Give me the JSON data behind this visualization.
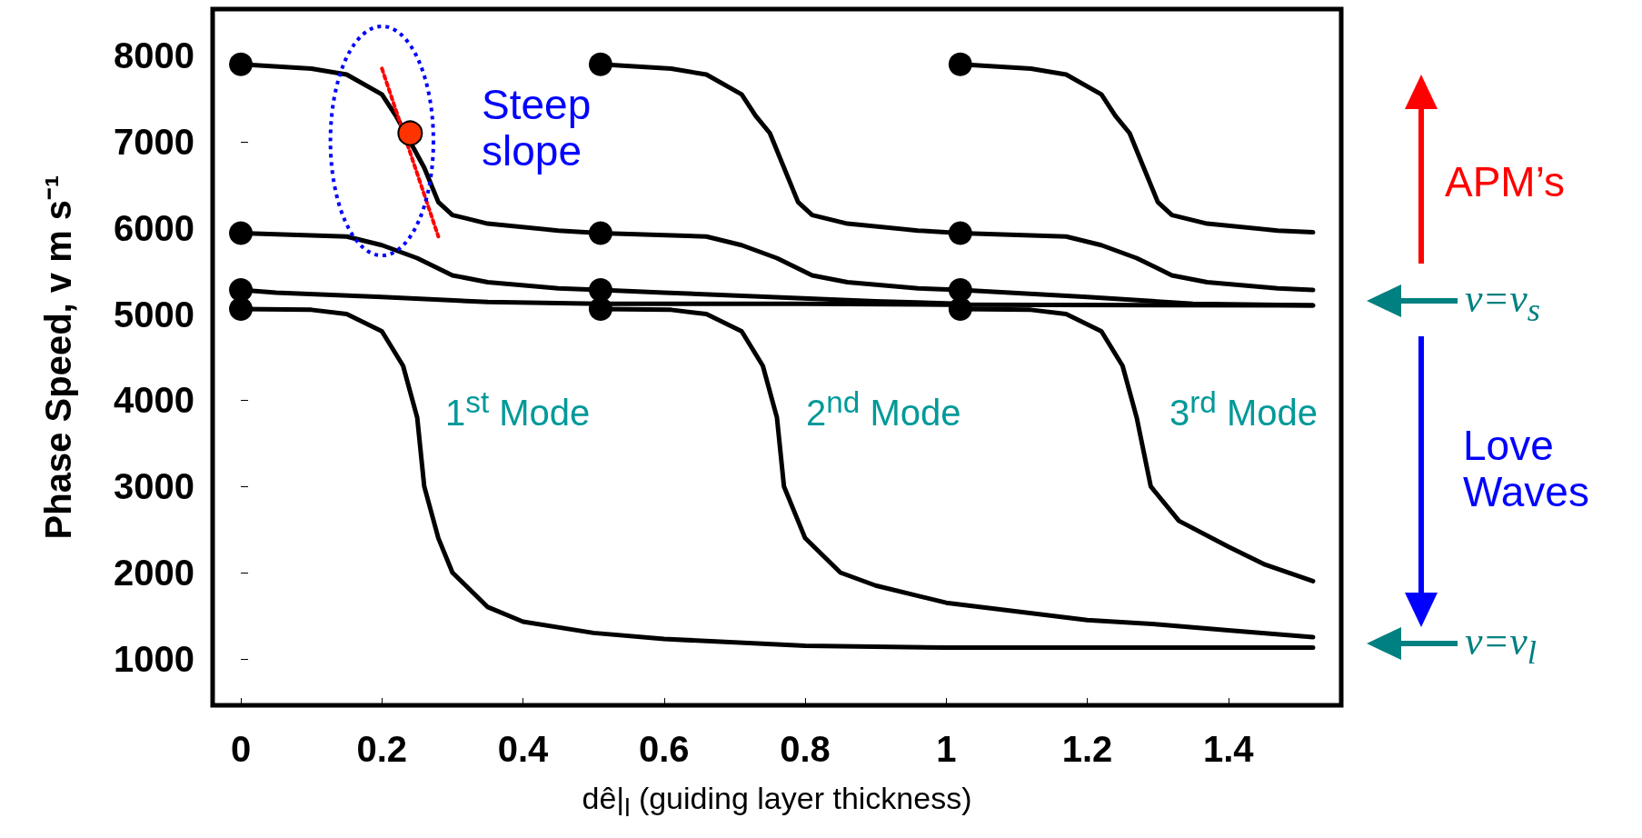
{
  "chart_data": {
    "type": "line",
    "ylabel": "Phase Speed, v m s⁻¹",
    "xlabel": "dê|$_{l}$  (guiding layer thickness)",
    "xlim": [
      -0.04,
      1.56
    ],
    "ylim": [
      460,
      8540
    ],
    "xticks": [
      0,
      0.2,
      0.4,
      0.6,
      0.8,
      1,
      1.2,
      1.4
    ],
    "yticks": [
      1000,
      2000,
      3000,
      4000,
      5000,
      6000,
      7000,
      8000
    ],
    "grid": false,
    "marker": "none",
    "annotations": [
      "Steep slope",
      "1$^{st}$ Mode",
      "2$^{nd}$ Mode",
      "3$^{rd}$ Mode",
      "APM’s",
      "Love Waves",
      "v=v$_{s}$",
      "v=v$_{l}$"
    ],
    "series": [
      {
        "color": "#000000",
        "x": [
          0,
          0.1,
          0.15,
          0.2,
          0.22,
          0.26,
          0.28,
          0.3,
          0.35,
          0.45,
          0.51
        ],
        "values": [
          7900,
          7850,
          7780,
          7550,
          7300,
          6700,
          6300,
          6150,
          6050,
          5970,
          5940
        ]
      },
      {
        "color": "#000000",
        "x": [
          0.51,
          0.61,
          0.66,
          0.71,
          0.73,
          0.75,
          0.77,
          0.79,
          0.81,
          0.86,
          0.96,
          1.02
        ],
        "values": [
          7900,
          7850,
          7780,
          7550,
          7300,
          7100,
          6700,
          6300,
          6150,
          6050,
          5970,
          5940
        ]
      },
      {
        "color": "#000000",
        "x": [
          1.02,
          1.12,
          1.17,
          1.22,
          1.24,
          1.26,
          1.28,
          1.3,
          1.32,
          1.37,
          1.47,
          1.52
        ],
        "values": [
          7900,
          7850,
          7780,
          7550,
          7300,
          7100,
          6700,
          6300,
          6150,
          6050,
          5970,
          5950
        ]
      },
      {
        "color": "#000000",
        "x": [
          0,
          0.15,
          0.2,
          0.25,
          0.3,
          0.35,
          0.45,
          0.51
        ],
        "values": [
          5940,
          5900,
          5800,
          5650,
          5450,
          5370,
          5300,
          5280
        ]
      },
      {
        "color": "#000000",
        "x": [
          0.51,
          0.66,
          0.71,
          0.76,
          0.81,
          0.86,
          0.96,
          1.02
        ],
        "values": [
          5940,
          5900,
          5800,
          5650,
          5450,
          5370,
          5300,
          5280
        ]
      },
      {
        "color": "#000000",
        "x": [
          1.02,
          1.17,
          1.22,
          1.27,
          1.32,
          1.37,
          1.47,
          1.52
        ],
        "values": [
          5940,
          5900,
          5800,
          5650,
          5450,
          5370,
          5300,
          5280
        ]
      },
      {
        "color": "#000000",
        "x": [
          0,
          0.05,
          0.2,
          0.35,
          0.51,
          0.8,
          1.0,
          1.52
        ],
        "values": [
          5280,
          5250,
          5200,
          5140,
          5120,
          5120,
          5110,
          5100
        ]
      },
      {
        "color": "#000000",
        "x": [
          0.51,
          0.6,
          0.9,
          1.02
        ],
        "values": [
          5280,
          5250,
          5150,
          5120
        ]
      },
      {
        "color": "#000000",
        "x": [
          1.02,
          1.2,
          1.35,
          1.52
        ],
        "values": [
          5280,
          5200,
          5120,
          5100
        ]
      },
      {
        "color": "#000000",
        "x": [
          0,
          0.1,
          0.15,
          0.2,
          0.23,
          0.25,
          0.26,
          0.28,
          0.3,
          0.35,
          0.4,
          0.5,
          0.6,
          0.8,
          1.0,
          1.52
        ],
        "values": [
          5060,
          5050,
          5000,
          4800,
          4400,
          3800,
          3000,
          2400,
          2000,
          1600,
          1430,
          1300,
          1230,
          1150,
          1130,
          1130
        ]
      },
      {
        "color": "#000000",
        "x": [
          0.51,
          0.61,
          0.66,
          0.71,
          0.74,
          0.76,
          0.77,
          0.8,
          0.85,
          0.9,
          1.0,
          1.1,
          1.2,
          1.3,
          1.4,
          1.52
        ],
        "values": [
          5060,
          5050,
          5000,
          4800,
          4400,
          3800,
          3000,
          2400,
          2000,
          1850,
          1650,
          1550,
          1450,
          1400,
          1330,
          1250
        ]
      },
      {
        "color": "#000000",
        "x": [
          1.02,
          1.12,
          1.17,
          1.22,
          1.25,
          1.27,
          1.29,
          1.33,
          1.4,
          1.45,
          1.52
        ],
        "values": [
          5060,
          5050,
          5000,
          4800,
          4400,
          3800,
          3000,
          2600,
          2300,
          2100,
          1900
        ]
      },
      {
        "color": "#ff0000",
        "line_style": "dotted",
        "x": [
          0.2,
          0.28
        ],
        "values": [
          7850,
          5900
        ]
      },
      {
        "type": "scatter",
        "marker": "circle",
        "color": "#000000",
        "x": [
          0,
          0.51,
          1.02,
          0,
          0.51,
          1.02,
          0,
          0.51,
          1.02,
          0,
          0.51,
          1.02
        ],
        "values": [
          7900,
          7900,
          7900,
          5940,
          5940,
          5940,
          5280,
          5280,
          5280,
          5060,
          5060,
          5060
        ]
      },
      {
        "type": "scatter",
        "marker": "circle",
        "color": "#ff3300",
        "x": [
          0.24
        ],
        "values": [
          7100
        ]
      }
    ]
  }
}
